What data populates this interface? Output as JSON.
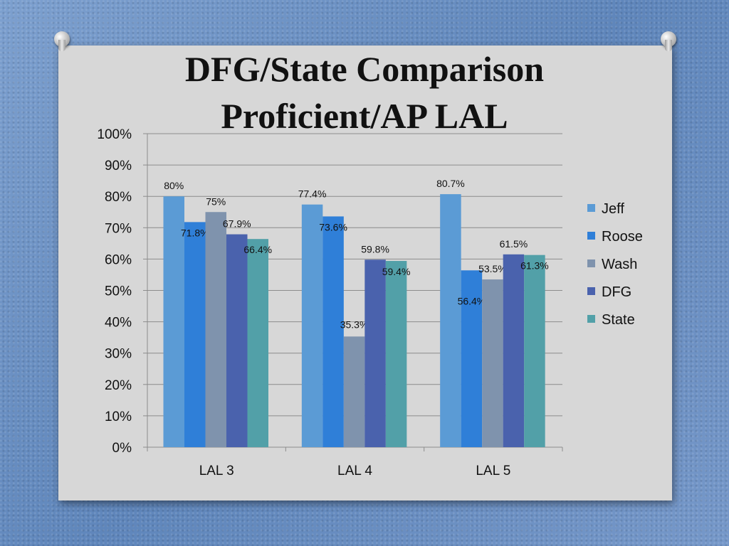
{
  "slide": {
    "title_line1": "DFG/State Comparison",
    "title_line2": "Proficient/AP LAL"
  },
  "chart_data": {
    "type": "bar",
    "categories": [
      "LAL 3",
      "LAL 4",
      "LAL 5"
    ],
    "series": [
      {
        "name": "Jeff",
        "color": "#5b9bd5",
        "values": [
          80,
          77.4,
          80.7
        ],
        "labels": [
          "80%",
          "77.4%",
          "80.7%"
        ]
      },
      {
        "name": "Roose",
        "color": "#2f7fd8",
        "values": [
          71.8,
          73.6,
          56.4
        ],
        "labels": [
          "71.8%",
          "73.6%",
          "56.4%"
        ]
      },
      {
        "name": "Wash",
        "color": "#7f93ad",
        "values": [
          75,
          35.3,
          53.5
        ],
        "labels": [
          "75%",
          "35.3%",
          "53.5%"
        ]
      },
      {
        "name": "DFG",
        "color": "#4a62ad",
        "values": [
          67.9,
          59.8,
          61.5
        ],
        "labels": [
          "67.9%",
          "59.8%",
          "61.5%"
        ]
      },
      {
        "name": "State",
        "color": "#52a0a8",
        "values": [
          66.4,
          59.4,
          61.3
        ],
        "labels": [
          "66.4%",
          "59.4%",
          "61.3%"
        ]
      }
    ],
    "ylim": [
      0,
      100
    ],
    "yticks": [
      "0%",
      "10%",
      "20%",
      "30%",
      "40%",
      "50%",
      "60%",
      "70%",
      "80%",
      "90%",
      "100%"
    ],
    "grid": true,
    "legend": "right"
  }
}
